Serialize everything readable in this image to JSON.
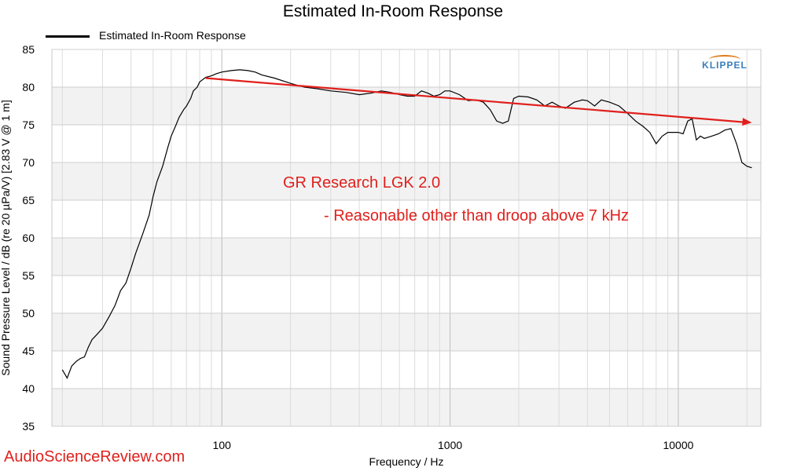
{
  "header": {
    "title": "Estimated In-Room Response"
  },
  "legend": {
    "label": "Estimated In-Room Response",
    "color": "#000000"
  },
  "logo": {
    "text": "KLIPPEL",
    "text_color": "#3a7fbf",
    "arc_color": "#e07b1a"
  },
  "watermark": "AudioScienceReview.com",
  "annotation": {
    "line1": "GR Research LGK 2.0",
    "line2": "- Reasonable other than droop above 7 kHz",
    "color": "#e0201c"
  },
  "chart_data": {
    "type": "line",
    "title": "Estimated In-Room Response",
    "xlabel": "Frequency / Hz",
    "ylabel": "Sound Pressure Level / dB (re 20 µPa/V) [2.83 V @ 1 m]",
    "xscale": "log",
    "xlim": [
      18,
      23000
    ],
    "ylim": [
      35,
      85
    ],
    "x_tick_labels": [
      "100",
      "1000",
      "10000"
    ],
    "x_ticks": [
      100,
      1000,
      10000
    ],
    "y_ticks": [
      35,
      40,
      45,
      50,
      55,
      60,
      65,
      70,
      75,
      80,
      85
    ],
    "grid": true,
    "legend_position": "top-left",
    "series": [
      {
        "name": "Estimated In-Room Response",
        "color": "#000000",
        "points": [
          [
            20,
            42.5
          ],
          [
            21,
            41.4
          ],
          [
            22,
            43.0
          ],
          [
            23,
            43.6
          ],
          [
            24,
            44.0
          ],
          [
            25,
            44.2
          ],
          [
            26,
            45.5
          ],
          [
            27,
            46.5
          ],
          [
            28,
            47.0
          ],
          [
            30,
            48.0
          ],
          [
            32,
            49.5
          ],
          [
            34,
            51.0
          ],
          [
            36,
            53.0
          ],
          [
            38,
            54.0
          ],
          [
            40,
            56.0
          ],
          [
            42,
            58.0
          ],
          [
            45,
            60.5
          ],
          [
            48,
            63.0
          ],
          [
            50,
            65.5
          ],
          [
            52,
            67.5
          ],
          [
            55,
            69.5
          ],
          [
            58,
            72.0
          ],
          [
            60,
            73.5
          ],
          [
            63,
            75.0
          ],
          [
            65,
            76.0
          ],
          [
            68,
            77.0
          ],
          [
            70,
            77.5
          ],
          [
            73,
            78.5
          ],
          [
            75,
            79.5
          ],
          [
            78,
            80.0
          ],
          [
            80,
            80.7
          ],
          [
            85,
            81.3
          ],
          [
            90,
            81.5
          ],
          [
            95,
            81.8
          ],
          [
            100,
            82.0
          ],
          [
            110,
            82.2
          ],
          [
            120,
            82.3
          ],
          [
            130,
            82.2
          ],
          [
            140,
            82.0
          ],
          [
            150,
            81.6
          ],
          [
            170,
            81.2
          ],
          [
            200,
            80.5
          ],
          [
            230,
            80.0
          ],
          [
            260,
            79.8
          ],
          [
            300,
            79.5
          ],
          [
            350,
            79.3
          ],
          [
            400,
            79.0
          ],
          [
            450,
            79.2
          ],
          [
            500,
            79.5
          ],
          [
            550,
            79.3
          ],
          [
            600,
            79.0
          ],
          [
            650,
            78.8
          ],
          [
            700,
            78.8
          ],
          [
            750,
            79.5
          ],
          [
            800,
            79.2
          ],
          [
            850,
            78.8
          ],
          [
            900,
            79.0
          ],
          [
            950,
            79.5
          ],
          [
            1000,
            79.5
          ],
          [
            1100,
            79.0
          ],
          [
            1200,
            78.2
          ],
          [
            1300,
            78.3
          ],
          [
            1400,
            78.0
          ],
          [
            1500,
            77.0
          ],
          [
            1600,
            75.5
          ],
          [
            1700,
            75.2
          ],
          [
            1800,
            75.5
          ],
          [
            1900,
            78.5
          ],
          [
            2000,
            78.8
          ],
          [
            2200,
            78.7
          ],
          [
            2400,
            78.3
          ],
          [
            2600,
            77.5
          ],
          [
            2800,
            78.0
          ],
          [
            3000,
            77.5
          ],
          [
            3200,
            77.2
          ],
          [
            3500,
            78.0
          ],
          [
            3800,
            78.3
          ],
          [
            4000,
            78.2
          ],
          [
            4300,
            77.5
          ],
          [
            4600,
            78.3
          ],
          [
            5000,
            78.0
          ],
          [
            5500,
            77.5
          ],
          [
            6000,
            76.5
          ],
          [
            6500,
            75.5
          ],
          [
            7000,
            74.8
          ],
          [
            7500,
            74.0
          ],
          [
            8000,
            72.5
          ],
          [
            8500,
            73.5
          ],
          [
            9000,
            74.0
          ],
          [
            10000,
            74.0
          ],
          [
            10500,
            73.8
          ],
          [
            11000,
            75.5
          ],
          [
            11500,
            75.8
          ],
          [
            12000,
            73.0
          ],
          [
            12500,
            73.5
          ],
          [
            13000,
            73.2
          ],
          [
            14000,
            73.5
          ],
          [
            15000,
            73.8
          ],
          [
            16000,
            74.3
          ],
          [
            17000,
            74.5
          ],
          [
            18000,
            72.5
          ],
          [
            19000,
            70.0
          ],
          [
            20000,
            69.5
          ],
          [
            21000,
            69.3
          ]
        ]
      }
    ],
    "trend_line": {
      "color": "#e0201c",
      "from": [
        85,
        81.2
      ],
      "to": [
        21000,
        75.3
      ]
    }
  }
}
